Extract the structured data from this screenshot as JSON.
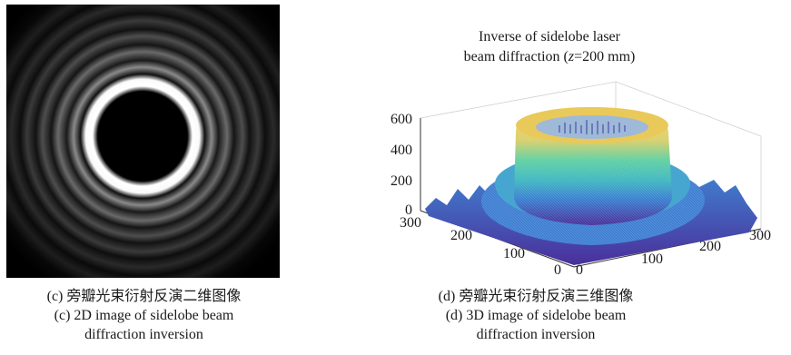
{
  "panel_c": {
    "caption_zh": "(c) 旁瓣光束衍射反演二维图像",
    "caption_en_line1": "(c) 2D image of sidelobe beam",
    "caption_en_line2": "diffraction inversion"
  },
  "panel_d": {
    "title_line1": "Inverse of sidelobe laser",
    "title_line2_pre": "beam diffraction (",
    "title_line2_var": "z",
    "title_line2_post": "=200 mm)",
    "caption_zh": "(d) 旁瓣光束衍射反演三维图像",
    "caption_en_line1": "(d) 3D image of sidelobe beam",
    "caption_en_line2": "diffraction inversion",
    "z_ticks": [
      "0",
      "200",
      "400",
      "600"
    ],
    "y_ticks": [
      "300",
      "200",
      "100",
      "0"
    ],
    "x_ticks": [
      "0",
      "100",
      "200",
      "300"
    ]
  },
  "colors": {
    "surface_top": "#f2d15a",
    "surface_mid": "#4ec9b0",
    "surface_low": "#3a7fd0",
    "surface_base": "#4a2f9a",
    "background_2d": "#000000"
  }
}
